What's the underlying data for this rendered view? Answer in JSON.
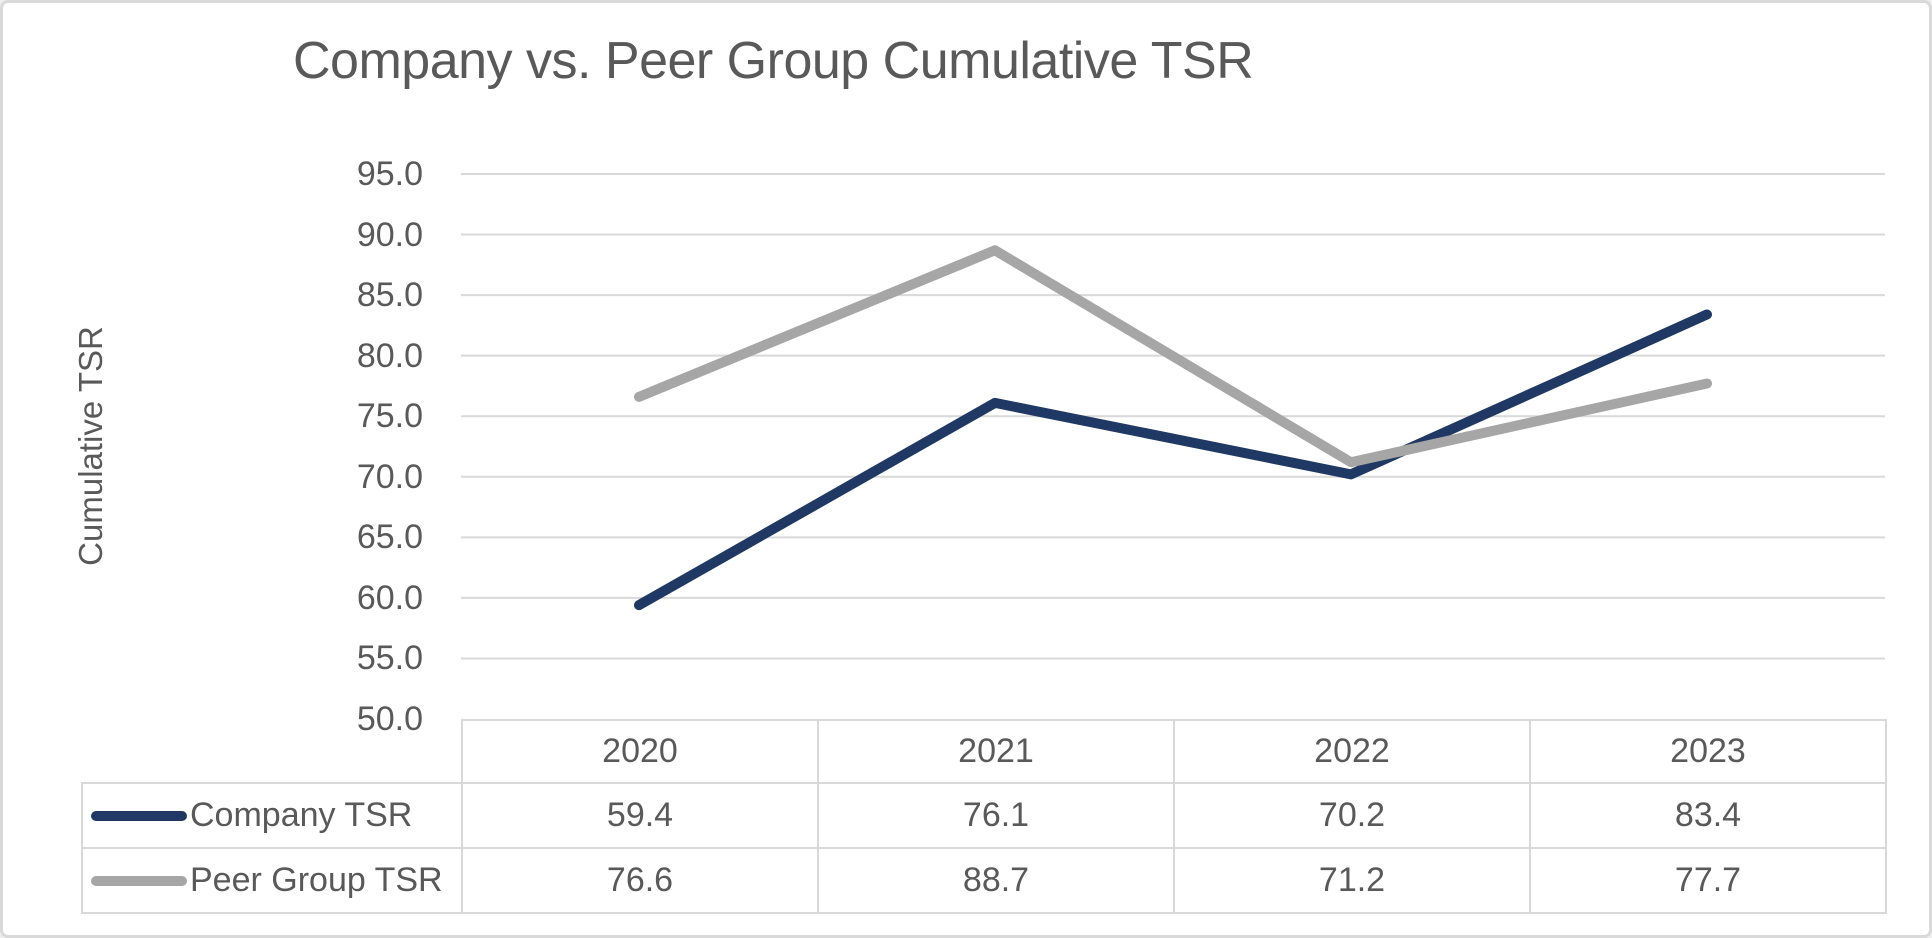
{
  "chart": {
    "title": "Company vs. Peer Group Cumulative TSR",
    "y_axis_title": "Cumulative TSR"
  },
  "chart_data": {
    "type": "line",
    "title": "Company vs. Peer Group Cumulative TSR",
    "xlabel": "",
    "ylabel": "Cumulative TSR",
    "categories": [
      "2020",
      "2021",
      "2022",
      "2023"
    ],
    "series": [
      {
        "name": "Company TSR",
        "values": [
          59.4,
          76.1,
          70.2,
          83.4
        ],
        "color": "#1f3864"
      },
      {
        "name": "Peer Group TSR",
        "values": [
          76.6,
          88.7,
          71.2,
          77.7
        ],
        "color": "#a6a6a6"
      }
    ],
    "ylim": [
      50.0,
      95.0
    ],
    "ytick_step": 5.0,
    "ytick_labels": [
      "95.0",
      "90.0",
      "85.0",
      "80.0",
      "75.0",
      "70.0",
      "65.0",
      "60.0",
      "55.0",
      "50.0"
    ],
    "grid": true,
    "legend_position": "data-table-left",
    "colors": {
      "gridline": "#d9d9d9",
      "text": "#595959",
      "table_border": "#d9d9d9",
      "frame_border": "#d9d9d9",
      "background": "#ffffff"
    }
  }
}
